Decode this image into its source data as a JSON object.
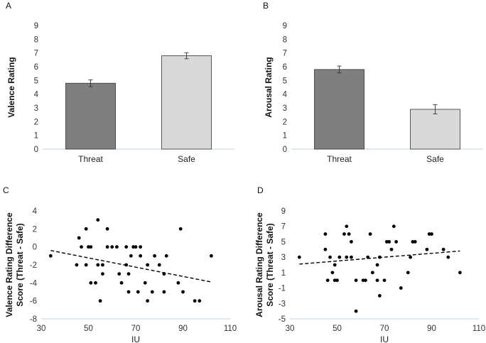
{
  "chart_data": [
    {
      "panel": "A",
      "type": "bar",
      "categories": [
        "Threat",
        "Safe"
      ],
      "values": [
        4.8,
        6.8
      ],
      "errors": [
        0.25,
        0.22
      ],
      "colors": [
        "#7f7f7f",
        "#d9d9d9"
      ],
      "ylabel": "Valence Rating",
      "ylim": [
        0,
        9
      ],
      "yticks": [
        0,
        1,
        2,
        3,
        4,
        5,
        6,
        7,
        8,
        9
      ],
      "grid": false
    },
    {
      "panel": "B",
      "type": "bar",
      "categories": [
        "Threat",
        "Safe"
      ],
      "values": [
        5.8,
        2.9
      ],
      "errors": [
        0.25,
        0.33
      ],
      "colors": [
        "#7f7f7f",
        "#d9d9d9"
      ],
      "ylabel": "Arousal Rating",
      "ylim": [
        0,
        9
      ],
      "yticks": [
        0,
        1,
        2,
        3,
        4,
        5,
        6,
        7,
        8,
        9
      ],
      "grid": false
    },
    {
      "panel": "C",
      "type": "scatter",
      "xlabel": "IU",
      "ylabel_lines": [
        "Valence Rating Difference",
        "Score (Threat - Safe)"
      ],
      "xlim": [
        30,
        110
      ],
      "ylim": [
        -8,
        4
      ],
      "xticks": [
        30,
        50,
        70,
        90,
        110
      ],
      "yticks": [
        -8,
        -6,
        -4,
        -2,
        0,
        2,
        4
      ],
      "points": [
        [
          34,
          -1
        ],
        [
          45,
          -2
        ],
        [
          46,
          1
        ],
        [
          47,
          0
        ],
        [
          49,
          2
        ],
        [
          49,
          -2
        ],
        [
          50,
          0
        ],
        [
          51,
          0
        ],
        [
          51,
          -4
        ],
        [
          53,
          -4
        ],
        [
          54,
          3
        ],
        [
          54,
          -2
        ],
        [
          55,
          -6
        ],
        [
          56,
          -2
        ],
        [
          56,
          -3
        ],
        [
          58,
          2
        ],
        [
          58,
          0
        ],
        [
          60,
          0
        ],
        [
          62,
          0
        ],
        [
          63,
          -3
        ],
        [
          64,
          -4
        ],
        [
          66,
          0
        ],
        [
          66,
          -2
        ],
        [
          67,
          -3
        ],
        [
          67,
          -5
        ],
        [
          68,
          -1
        ],
        [
          69,
          0
        ],
        [
          70,
          0
        ],
        [
          71,
          -5
        ],
        [
          72,
          -1
        ],
        [
          72,
          0
        ],
        [
          74,
          -4
        ],
        [
          75,
          -2
        ],
        [
          75,
          -6
        ],
        [
          77,
          -5
        ],
        [
          78,
          -1
        ],
        [
          80,
          -2
        ],
        [
          82,
          -3
        ],
        [
          82,
          -5
        ],
        [
          83,
          -1
        ],
        [
          88,
          -4
        ],
        [
          89,
          2
        ],
        [
          90,
          -5
        ],
        [
          95,
          -6
        ],
        [
          97,
          -6
        ],
        [
          102,
          -1
        ]
      ],
      "trendline": {
        "style": "dashed",
        "x": [
          34,
          102
        ],
        "y": [
          -0.4,
          -3.9
        ]
      },
      "grid": false
    },
    {
      "panel": "D",
      "type": "scatter",
      "xlabel": "IU",
      "ylabel_lines": [
        "Arousal Rating Difference",
        "Score (Threat - Safe)"
      ],
      "xlim": [
        30,
        110
      ],
      "ylim": [
        -5,
        9
      ],
      "xticks": [
        30,
        50,
        70,
        90,
        110
      ],
      "yticks": [
        -5,
        -3,
        -1,
        1,
        3,
        5,
        7,
        9
      ],
      "points": [
        [
          34,
          3
        ],
        [
          45,
          4
        ],
        [
          45,
          6
        ],
        [
          46,
          0
        ],
        [
          47,
          3
        ],
        [
          48,
          1
        ],
        [
          49,
          0
        ],
        [
          49,
          2
        ],
        [
          50,
          0
        ],
        [
          51,
          3
        ],
        [
          53,
          6
        ],
        [
          54,
          7
        ],
        [
          54,
          3
        ],
        [
          55,
          6
        ],
        [
          56,
          5
        ],
        [
          56,
          3
        ],
        [
          58,
          0
        ],
        [
          58,
          -4
        ],
        [
          61,
          0
        ],
        [
          62,
          0
        ],
        [
          63,
          3
        ],
        [
          64,
          6
        ],
        [
          65,
          1
        ],
        [
          67,
          2
        ],
        [
          67,
          0
        ],
        [
          68,
          3
        ],
        [
          68,
          -2
        ],
        [
          70,
          0
        ],
        [
          71,
          5
        ],
        [
          72,
          5
        ],
        [
          73,
          4
        ],
        [
          74,
          7
        ],
        [
          75,
          5
        ],
        [
          77,
          -1
        ],
        [
          80,
          1
        ],
        [
          81,
          3
        ],
        [
          82,
          5
        ],
        [
          83,
          5
        ],
        [
          88,
          4
        ],
        [
          89,
          6
        ],
        [
          90,
          6
        ],
        [
          95,
          4
        ],
        [
          97,
          3
        ],
        [
          102,
          1
        ]
      ],
      "trendline": {
        "style": "dashed",
        "x": [
          34,
          102
        ],
        "y": [
          2.1,
          3.8
        ]
      },
      "grid": false
    }
  ]
}
